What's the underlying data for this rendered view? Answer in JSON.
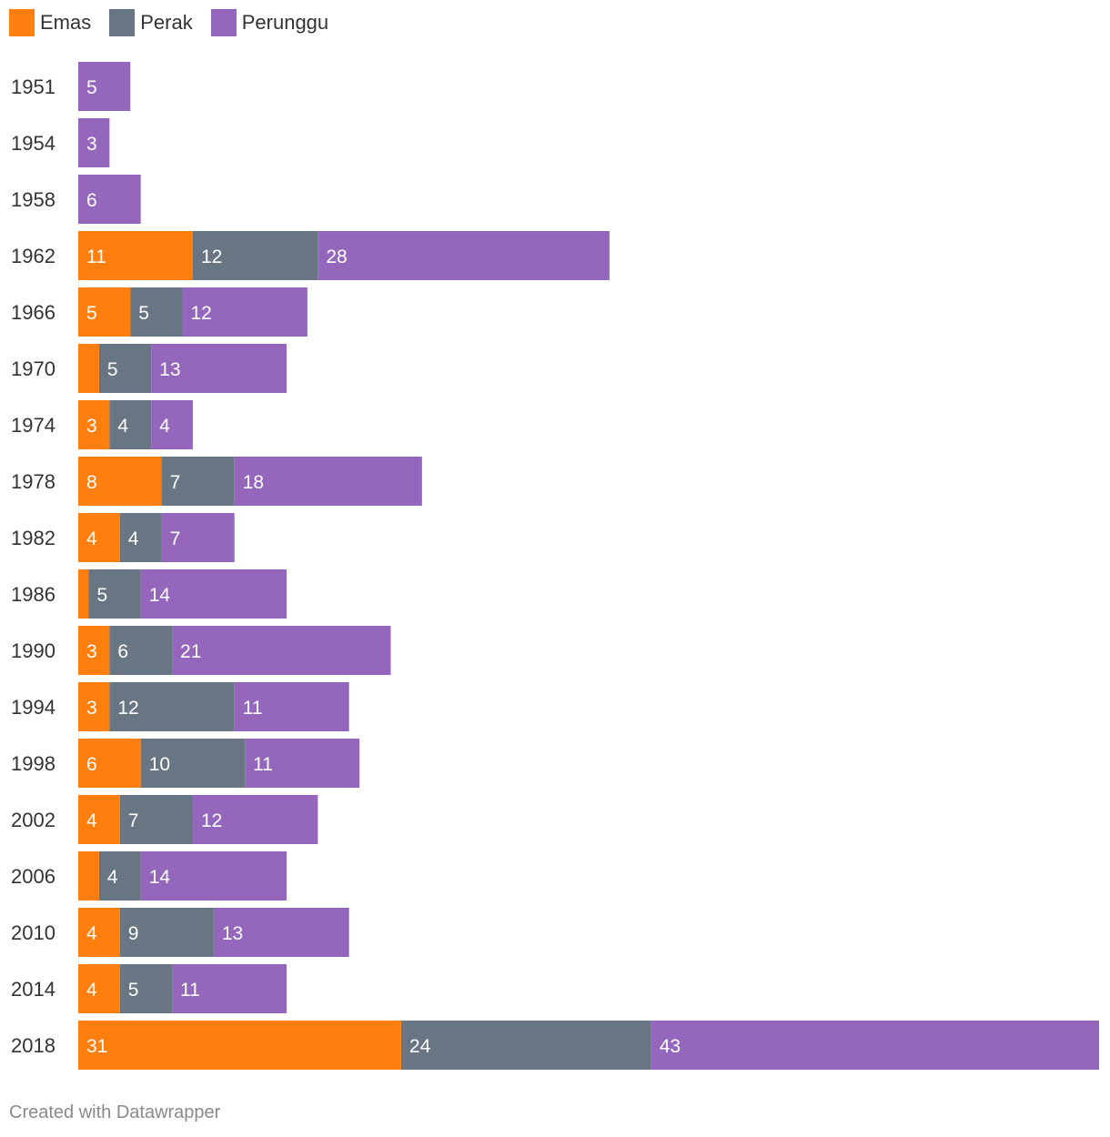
{
  "legend": {
    "items": [
      {
        "label": "Emas",
        "color": "#FF7F0E"
      },
      {
        "label": "Perak",
        "color": "#687583"
      },
      {
        "label": "Perunggu",
        "color": "#9467BD"
      }
    ]
  },
  "footer": {
    "credit": "Created with Datawrapper"
  },
  "chart_data": {
    "type": "bar",
    "orientation": "horizontal",
    "stacked": true,
    "categories": [
      "1951",
      "1954",
      "1958",
      "1962",
      "1966",
      "1970",
      "1974",
      "1978",
      "1982",
      "1986",
      "1990",
      "1994",
      "1998",
      "2002",
      "2006",
      "2010",
      "2014",
      "2018"
    ],
    "series": [
      {
        "name": "Emas",
        "color": "#FF7F0E",
        "values": [
          0,
          0,
          0,
          11,
          5,
          2,
          3,
          8,
          4,
          1,
          3,
          3,
          6,
          4,
          2,
          4,
          4,
          31
        ]
      },
      {
        "name": "Perak",
        "color": "#687583",
        "values": [
          0,
          0,
          0,
          12,
          5,
          5,
          4,
          7,
          4,
          5,
          6,
          12,
          10,
          7,
          4,
          9,
          5,
          24
        ]
      },
      {
        "name": "Perunggu",
        "color": "#9467BD",
        "values": [
          5,
          3,
          6,
          28,
          12,
          13,
          4,
          18,
          7,
          14,
          21,
          11,
          11,
          12,
          14,
          13,
          11,
          43
        ]
      }
    ],
    "label_min_value": 3,
    "xlim": [
      0,
      98
    ],
    "grid": false,
    "legend_position": "top-left",
    "title": "",
    "xlabel": "",
    "ylabel": ""
  }
}
